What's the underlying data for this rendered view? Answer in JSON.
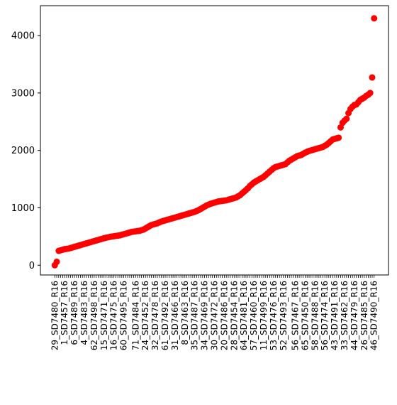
{
  "chart_data": {
    "type": "scatter",
    "title": "",
    "xlabel": "",
    "ylabel": "",
    "ylim": [
      -170,
      4520
    ],
    "yticks": [
      0,
      1000,
      2000,
      3000,
      4000
    ],
    "ytick_labels": [
      "0",
      "1000",
      "2000",
      "3000",
      "4000"
    ],
    "grid": false,
    "legend": "none",
    "marker_color": "#ff0000",
    "xtick_labels": [
      "29_SD7480_R16",
      "1_SD7457_R16",
      "6_SD7489_R16",
      "4_SD7483_R16",
      "62_SD7498_R16",
      "15_SD7471_R16",
      "16_SD7475_R16",
      "60_SD7495_R16",
      "71_SD7484_R16",
      "24_SD7452_R16",
      "32_SD7478_R16",
      "61_SD7492_R16",
      "31_SD7466_R16",
      "8_SD7463_R16",
      "35_SD7487_R16",
      "34_SD7469_R16",
      "30_SD7472_R16",
      "20_SD7486_R16",
      "28_SD7454_R16",
      "64_SD7481_R16",
      "57_SD7460_R16",
      "11_SD7499_R16",
      "53_SD7476_R16",
      "52_SD7493_R16",
      "56_SD7467_R16",
      "65_SD7450_R16",
      "58_SD7488_R16",
      "56_SD7474_R16",
      "43_SD7491_R16",
      "33_SD7462_R16",
      "44_SD7479_R16",
      "26_SD7485_R16",
      "46_SD7490_R16"
    ],
    "x": [
      0,
      1,
      2,
      3,
      4,
      5,
      6,
      7,
      8,
      9,
      10,
      11,
      12,
      13,
      14,
      15,
      16,
      17,
      18,
      19,
      20,
      21,
      22,
      23,
      24,
      25,
      26,
      27,
      28,
      29,
      30,
      31,
      32,
      33,
      34,
      35,
      36,
      37,
      38,
      39,
      40,
      41,
      42,
      43,
      44,
      45,
      46,
      47,
      48,
      49,
      50,
      51,
      52,
      53,
      54,
      55,
      56,
      57,
      58,
      59,
      60,
      61,
      62,
      63,
      64,
      65,
      66,
      67,
      68,
      69,
      70,
      71,
      72,
      73,
      74,
      75,
      76,
      77,
      78,
      79,
      80,
      81,
      82,
      83,
      84,
      85,
      86,
      87,
      88,
      89,
      90,
      91,
      92,
      93,
      94,
      95,
      96,
      97,
      98,
      99,
      100,
      101,
      102,
      103,
      104,
      105,
      106,
      107,
      108,
      109,
      110,
      111,
      112,
      113,
      114,
      115,
      116,
      117,
      118,
      119,
      120,
      121,
      122,
      123,
      124,
      125,
      126,
      127,
      128,
      129,
      130,
      131,
      132,
      133,
      134,
      135,
      136,
      137,
      138,
      139,
      140,
      141,
      142,
      143,
      144,
      145,
      146,
      147,
      148,
      149,
      150,
      151,
      152,
      153,
      154,
      155,
      156,
      157,
      158,
      159,
      160,
      161,
      162
    ],
    "y": [
      0,
      60,
      250,
      260,
      270,
      280,
      285,
      290,
      300,
      310,
      320,
      330,
      340,
      350,
      360,
      370,
      380,
      390,
      400,
      410,
      420,
      430,
      440,
      450,
      460,
      470,
      478,
      486,
      494,
      500,
      505,
      510,
      515,
      520,
      530,
      540,
      550,
      560,
      570,
      580,
      585,
      590,
      595,
      600,
      610,
      620,
      640,
      660,
      680,
      700,
      710,
      720,
      730,
      745,
      760,
      770,
      780,
      790,
      800,
      810,
      820,
      830,
      840,
      850,
      860,
      870,
      880,
      890,
      900,
      910,
      920,
      930,
      945,
      960,
      980,
      1000,
      1020,
      1040,
      1055,
      1070,
      1080,
      1090,
      1100,
      1110,
      1115,
      1120,
      1125,
      1130,
      1140,
      1150,
      1160,
      1170,
      1180,
      1200,
      1220,
      1250,
      1280,
      1310,
      1340,
      1380,
      1410,
      1440,
      1460,
      1480,
      1500,
      1520,
      1540,
      1570,
      1600,
      1630,
      1660,
      1690,
      1710,
      1720,
      1730,
      1740,
      1750,
      1760,
      1790,
      1820,
      1840,
      1860,
      1880,
      1900,
      1910,
      1920,
      1940,
      1960,
      1975,
      1990,
      2000,
      2010,
      2020,
      2030,
      2040,
      2050,
      2060,
      2080,
      2100,
      2130,
      2160,
      2190,
      2200,
      2210,
      2220,
      2400,
      2480,
      2520,
      2550,
      2650,
      2720,
      2760,
      2790,
      2800,
      2840,
      2880,
      2900,
      2920,
      2950,
      2970,
      3000,
      3270,
      4300
    ]
  }
}
